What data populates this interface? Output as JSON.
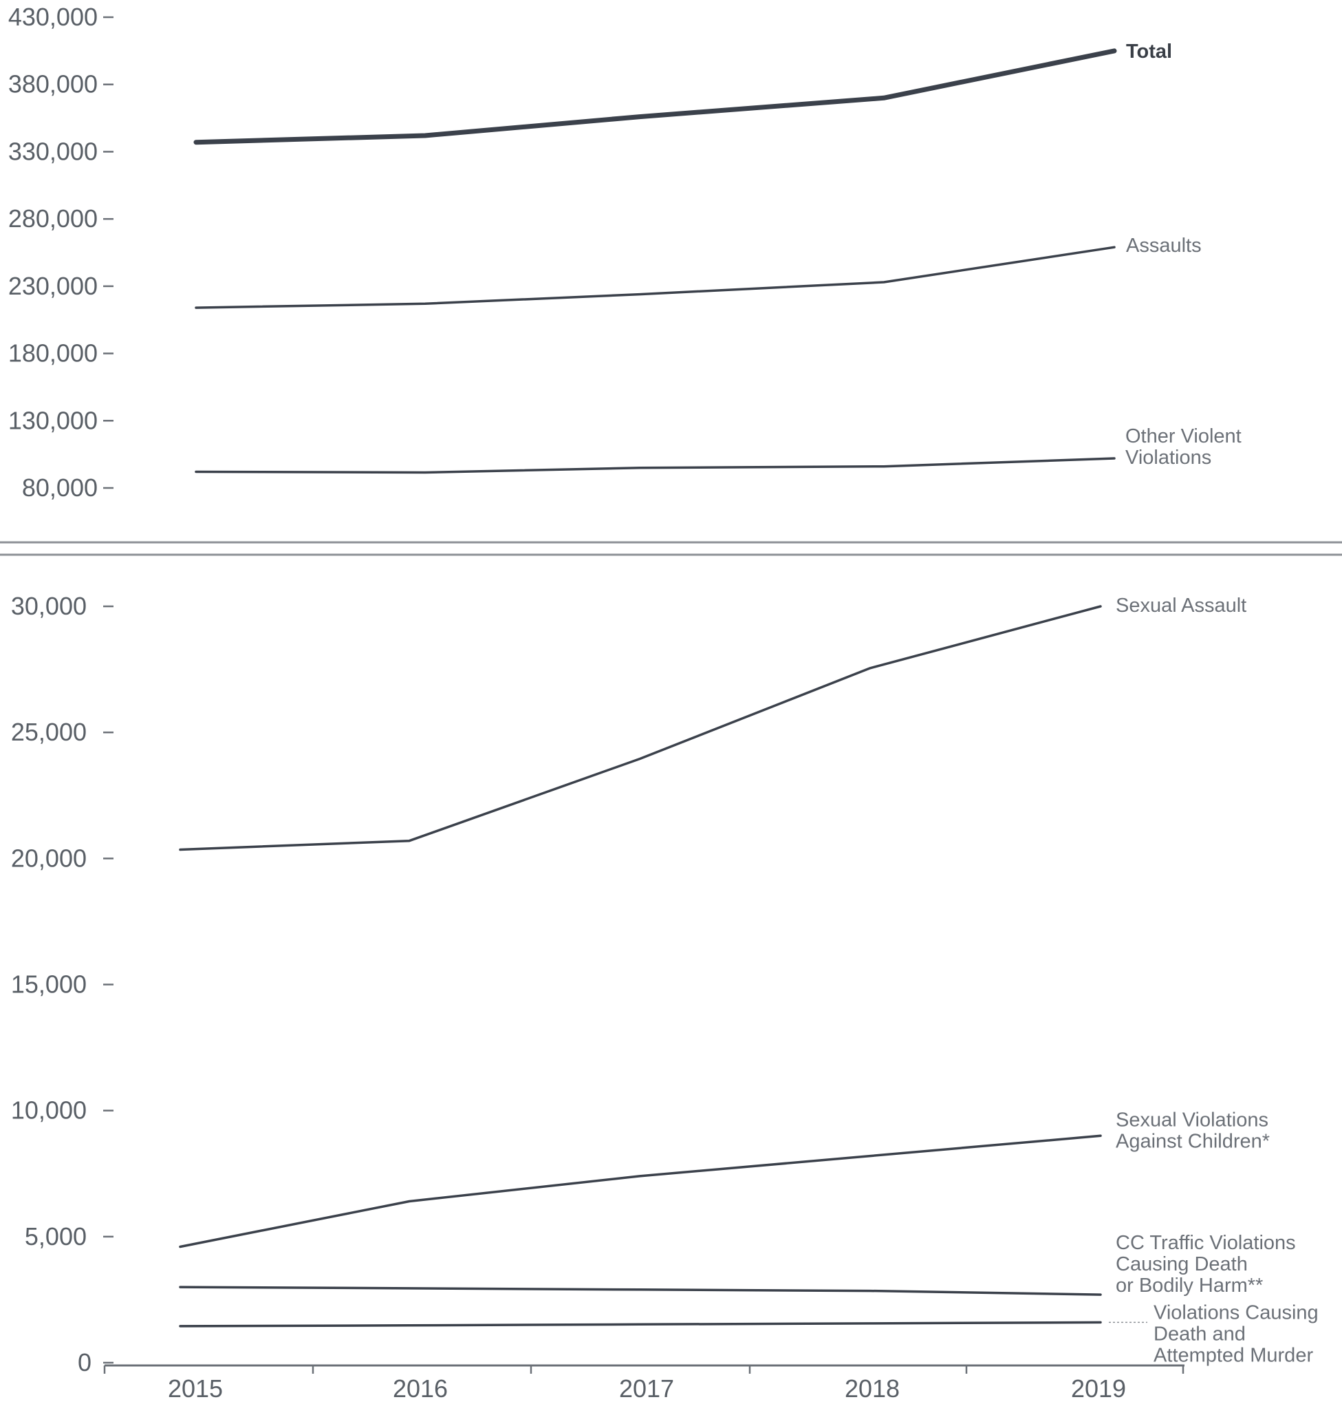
{
  "chart_data": [
    {
      "type": "line",
      "panel": "top",
      "title": "",
      "xlabel": "",
      "ylabel": "",
      "categories": [
        "2015",
        "2016",
        "2017",
        "2018",
        "2019"
      ],
      "ylim": [
        80000,
        430000
      ],
      "yticks": [
        "430,000",
        "380,000",
        "330,000",
        "280,000",
        "230,000",
        "180,000",
        "130,000",
        "80,000"
      ],
      "ytick_values": [
        430000,
        380000,
        330000,
        280000,
        230000,
        180000,
        130000,
        80000
      ],
      "series": [
        {
          "name": "Total",
          "values": [
            337000,
            342000,
            356000,
            370000,
            405000
          ],
          "bold": true
        },
        {
          "name": "Assaults",
          "values": [
            214000,
            217000,
            224000,
            233000,
            259000
          ]
        },
        {
          "name": "Other Violent Violations",
          "label_lines": [
            "Other Violent",
            "Violations"
          ],
          "values": [
            92000,
            91500,
            95000,
            96000,
            102000
          ]
        }
      ]
    },
    {
      "type": "line",
      "panel": "bottom",
      "title": "",
      "xlabel": "",
      "ylabel": "",
      "categories": [
        "2015",
        "2016",
        "2017",
        "2018",
        "2019"
      ],
      "ylim": [
        0,
        30000
      ],
      "yticks": [
        "30,000",
        "25,000",
        "20,000",
        "15,000",
        "10,000",
        "5,000",
        "0"
      ],
      "ytick_values": [
        30000,
        25000,
        20000,
        15000,
        10000,
        5000,
        0
      ],
      "series": [
        {
          "name": "Sexual Assault",
          "label_lines": [
            "Sexual Assault"
          ],
          "values": [
            20350,
            20700,
            23950,
            27550,
            30000
          ]
        },
        {
          "name": "Sexual Violations Against Children*",
          "label_lines": [
            "Sexual Violations",
            "Against Children*"
          ],
          "values": [
            4600,
            6400,
            7400,
            8200,
            9000
          ]
        },
        {
          "name": "CC Traffic Violations Causing Death or Bodily Harm**",
          "label_lines": [
            "CC Traffic Violations",
            "Causing Death",
            "or Bodily Harm**"
          ],
          "values": [
            3000,
            2950,
            2900,
            2850,
            2700
          ]
        },
        {
          "name": "Violations Causing Death and Attempted Murder",
          "label_lines": [
            "Violations Causing",
            "Death and",
            "Attempted Murder"
          ],
          "values": [
            1450,
            1480,
            1520,
            1560,
            1600
          ]
        }
      ]
    }
  ]
}
